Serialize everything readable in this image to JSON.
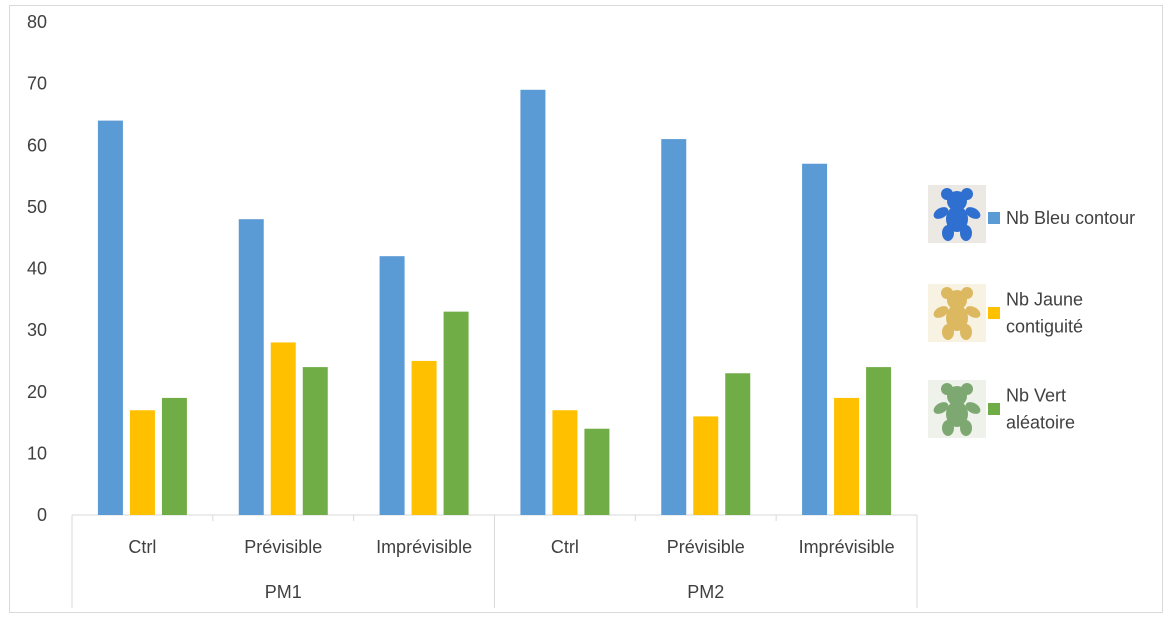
{
  "chart_data": {
    "type": "bar",
    "title": "",
    "xlabel": "",
    "ylabel": "",
    "ylim": [
      0,
      80
    ],
    "yticks": [
      0,
      10,
      20,
      30,
      40,
      50,
      60,
      70,
      80
    ],
    "grid": false,
    "legend_position": "right",
    "groups": [
      {
        "name": "PM1",
        "categories": [
          "Ctrl",
          "Prévisible",
          "Imprévisible"
        ]
      },
      {
        "name": "PM2",
        "categories": [
          "Ctrl",
          "Prévisible",
          "Imprévisible"
        ]
      }
    ],
    "series": [
      {
        "name": "Nb Bleu contour",
        "legend_lines": [
          "Nb Bleu contour"
        ],
        "color": "#5B9BD5",
        "icon": "blue-teddy-bear-icon",
        "values": [
          64,
          48,
          42,
          69,
          61,
          57
        ]
      },
      {
        "name": "Nb Jaune contiguité",
        "legend_lines": [
          "Nb Jaune",
          "contiguité"
        ],
        "color": "#FFC000",
        "icon": "yellow-teddy-bear-icon",
        "values": [
          17,
          28,
          25,
          17,
          16,
          19
        ]
      },
      {
        "name": "Nb Vert aléatoire",
        "legend_lines": [
          "Nb Vert",
          "aléatoire"
        ],
        "color": "#70AD47",
        "icon": "green-teddy-bear-icon",
        "values": [
          19,
          24,
          33,
          14,
          23,
          24
        ]
      }
    ]
  }
}
